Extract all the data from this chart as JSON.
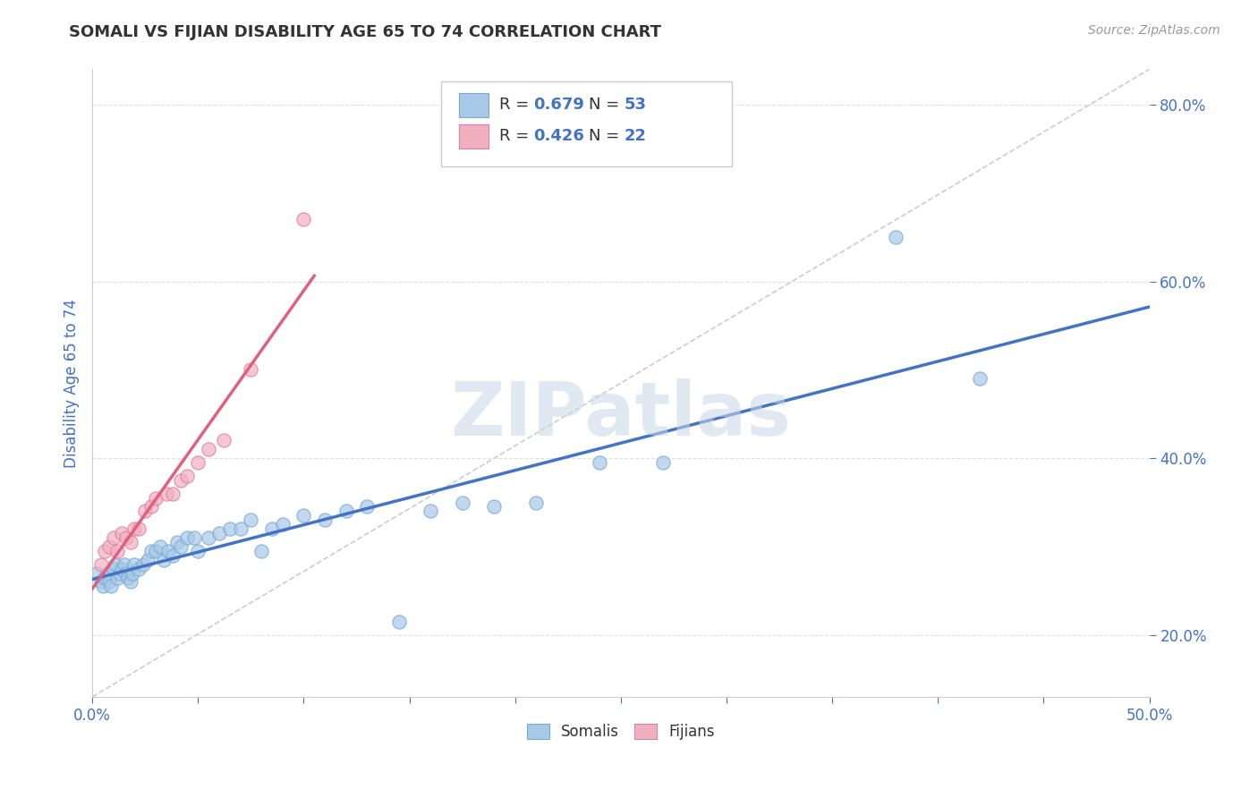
{
  "title": "SOMALI VS FIJIAN DISABILITY AGE 65 TO 74 CORRELATION CHART",
  "source_text": "Source: ZipAtlas.com",
  "ylabel": "Disability Age 65 to 74",
  "xlim": [
    0.0,
    0.5
  ],
  "ylim": [
    0.13,
    0.84
  ],
  "xticks": [
    0.0,
    0.05,
    0.1,
    0.15,
    0.2,
    0.25,
    0.3,
    0.35,
    0.4,
    0.45,
    0.5
  ],
  "xticklabels": [
    "0.0%",
    "",
    "",
    "",
    "",
    "",
    "",
    "",
    "",
    "",
    "50.0%"
  ],
  "yticks": [
    0.2,
    0.4,
    0.6,
    0.8
  ],
  "yticklabels": [
    "20.0%",
    "40.0%",
    "60.0%",
    "80.0%"
  ],
  "somali_color": "#a8c8e8",
  "fijian_color": "#f0b0c0",
  "somali_edge_color": "#7aaad0",
  "fijian_edge_color": "#e080a0",
  "somali_line_color": "#4472c4",
  "fijian_line_color": "#e06080",
  "r_somali": 0.679,
  "n_somali": 53,
  "r_fijian": 0.426,
  "n_fijian": 22,
  "somali_x": [
    0.002,
    0.004,
    0.005,
    0.006,
    0.007,
    0.008,
    0.009,
    0.01,
    0.011,
    0.012,
    0.013,
    0.014,
    0.015,
    0.016,
    0.017,
    0.018,
    0.019,
    0.02,
    0.022,
    0.024,
    0.026,
    0.028,
    0.03,
    0.032,
    0.034,
    0.036,
    0.038,
    0.04,
    0.042,
    0.045,
    0.048,
    0.05,
    0.055,
    0.06,
    0.065,
    0.07,
    0.075,
    0.08,
    0.085,
    0.09,
    0.1,
    0.11,
    0.12,
    0.13,
    0.145,
    0.16,
    0.175,
    0.19,
    0.21,
    0.24,
    0.27,
    0.38,
    0.42
  ],
  "somali_y": [
    0.27,
    0.26,
    0.255,
    0.265,
    0.27,
    0.26,
    0.255,
    0.275,
    0.28,
    0.265,
    0.27,
    0.275,
    0.28,
    0.27,
    0.265,
    0.26,
    0.27,
    0.28,
    0.275,
    0.28,
    0.285,
    0.295,
    0.295,
    0.3,
    0.285,
    0.295,
    0.29,
    0.305,
    0.3,
    0.31,
    0.31,
    0.295,
    0.31,
    0.315,
    0.32,
    0.32,
    0.33,
    0.295,
    0.32,
    0.325,
    0.335,
    0.33,
    0.34,
    0.345,
    0.215,
    0.34,
    0.35,
    0.345,
    0.35,
    0.395,
    0.395,
    0.65,
    0.49
  ],
  "fijian_x": [
    0.004,
    0.006,
    0.008,
    0.01,
    0.012,
    0.014,
    0.016,
    0.018,
    0.02,
    0.022,
    0.025,
    0.028,
    0.03,
    0.035,
    0.038,
    0.042,
    0.045,
    0.05,
    0.055,
    0.062,
    0.075,
    0.1
  ],
  "fijian_y": [
    0.28,
    0.295,
    0.3,
    0.31,
    0.295,
    0.315,
    0.31,
    0.305,
    0.32,
    0.32,
    0.34,
    0.345,
    0.355,
    0.36,
    0.36,
    0.375,
    0.38,
    0.395,
    0.41,
    0.42,
    0.5,
    0.67
  ],
  "watermark": "ZIPatlas",
  "watermark_color": "#c8d8e8",
  "grid_color": "#e0e0e0",
  "grid_style": "--",
  "background_color": "#ffffff",
  "title_color": "#333333",
  "tick_color": "#4472c4"
}
